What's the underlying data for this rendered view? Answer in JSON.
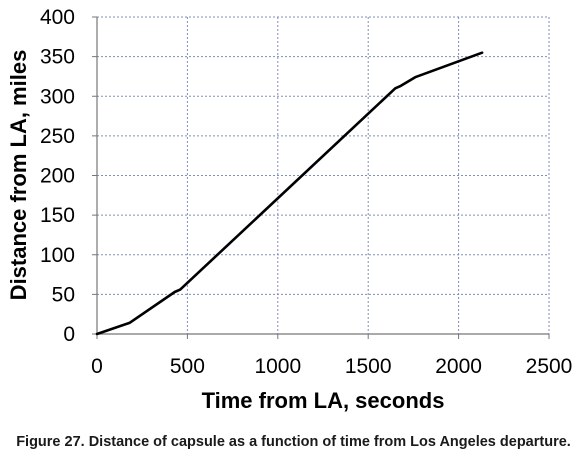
{
  "caption": "Figure 27. Distance of capsule as a function of time from Los Angeles departure.",
  "chart_data": {
    "type": "line",
    "title": "",
    "xlabel": "Time from LA, seconds",
    "ylabel": "Distance from LA, miles",
    "xlim": [
      0,
      2500
    ],
    "ylim": [
      0,
      400
    ],
    "xticks": [
      0,
      500,
      1000,
      1500,
      2000,
      2500
    ],
    "yticks": [
      0,
      50,
      100,
      150,
      200,
      250,
      300,
      350,
      400
    ],
    "grid": true,
    "legend": "none",
    "series": [
      {
        "x": [
          0,
          180,
          430,
          460,
          1650,
          1680,
          1760,
          2130
        ],
        "y": [
          0,
          14,
          53,
          56,
          310,
          313,
          324,
          355
        ]
      }
    ]
  }
}
